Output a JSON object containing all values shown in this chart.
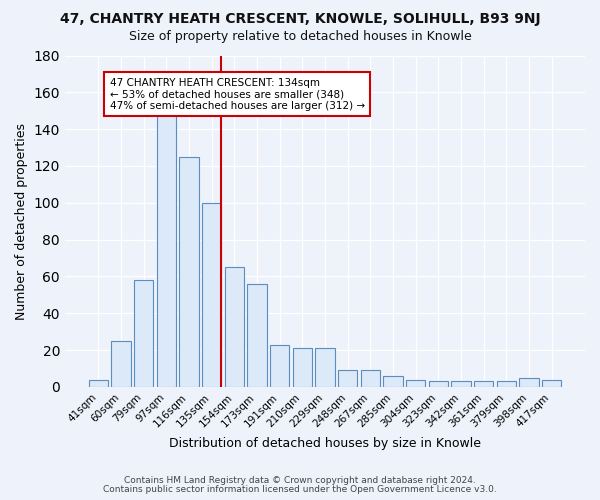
{
  "title": "47, CHANTRY HEATH CRESCENT, KNOWLE, SOLIHULL, B93 9NJ",
  "subtitle": "Size of property relative to detached houses in Knowle",
  "xlabel": "Distribution of detached houses by size in Knowle",
  "ylabel": "Number of detached properties",
  "categories": [
    "41sqm",
    "60sqm",
    "79sqm",
    "97sqm",
    "116sqm",
    "135sqm",
    "154sqm",
    "173sqm",
    "191sqm",
    "210sqm",
    "229sqm",
    "248sqm",
    "267sqm",
    "285sqm",
    "304sqm",
    "323sqm",
    "342sqm",
    "361sqm",
    "379sqm",
    "398sqm",
    "417sqm"
  ],
  "values": [
    4,
    25,
    58,
    150,
    125,
    100,
    65,
    56,
    23,
    21,
    21,
    9,
    9,
    6,
    4,
    3,
    3,
    3,
    3,
    5,
    4
  ],
  "bar_color": "#dce9f8",
  "bar_edge_color": "#5b8dc0",
  "highlight_line_color": "#cc0000",
  "vline_index": 5,
  "annotation_text": "47 CHANTRY HEATH CRESCENT: 134sqm\n← 53% of detached houses are smaller (348)\n47% of semi-detached houses are larger (312) →",
  "annotation_box_facecolor": "#ffffff",
  "annotation_box_edgecolor": "#cc0000",
  "ylim": [
    0,
    180
  ],
  "yticks": [
    0,
    20,
    40,
    60,
    80,
    100,
    120,
    140,
    160,
    180
  ],
  "footnote1": "Contains HM Land Registry data © Crown copyright and database right 2024.",
  "footnote2": "Contains public sector information licensed under the Open Government Licence v3.0.",
  "title_fontsize": 10,
  "subtitle_fontsize": 9,
  "axis_label_fontsize": 9,
  "tick_fontsize": 7.5,
  "annot_fontsize": 7.5,
  "footnote_fontsize": 6.5,
  "background_color": "#eef2fa"
}
